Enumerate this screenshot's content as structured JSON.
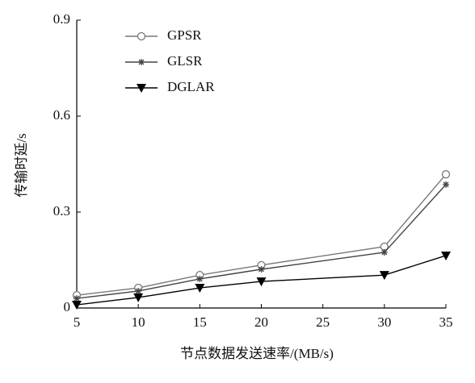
{
  "chart_data": {
    "type": "line",
    "xlabel": "节点数据发送速率/(MB/s)",
    "ylabel": "传输时延/s",
    "x": [
      5,
      10,
      15,
      20,
      30,
      35
    ],
    "series": [
      {
        "name": "GPSR",
        "color": "#777777",
        "marker": "circle",
        "values": [
          0.04,
          0.063,
          0.103,
          0.134,
          0.192,
          0.418
        ]
      },
      {
        "name": "GLSR",
        "color": "#444444",
        "marker": "star",
        "values": [
          0.03,
          0.053,
          0.091,
          0.121,
          0.174,
          0.386
        ]
      },
      {
        "name": "DGLAR",
        "color": "#000000",
        "marker": "triangle-down",
        "values": [
          0.01,
          0.033,
          0.063,
          0.083,
          0.103,
          0.164
        ]
      }
    ],
    "xlim": [
      5,
      35
    ],
    "xticks": [
      5,
      10,
      15,
      20,
      25,
      30,
      35
    ],
    "ylim": [
      0,
      0.9
    ],
    "yticks": [
      0,
      0.3,
      0.6,
      0.9
    ],
    "legend": "upper left"
  }
}
